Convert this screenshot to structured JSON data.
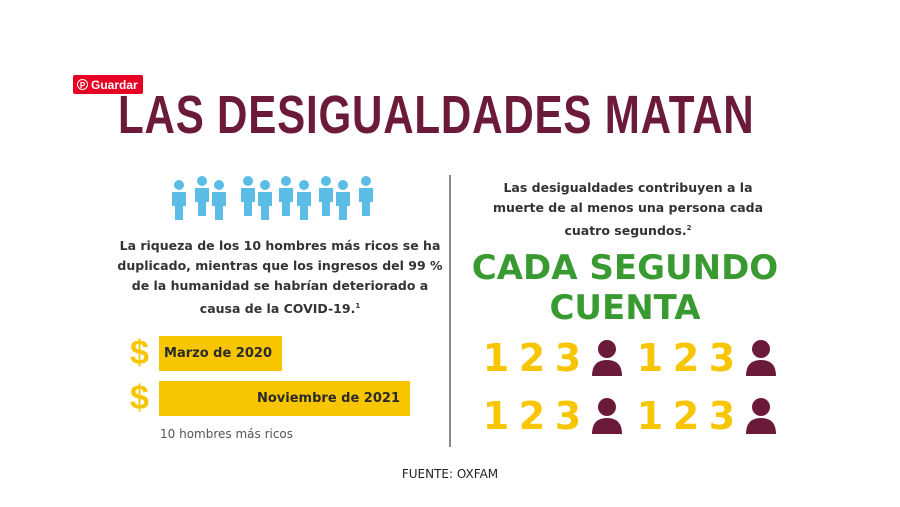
{
  "save_button": {
    "label": "Guardar",
    "icon": "pinterest-icon",
    "color": "#e60023"
  },
  "title": "LAS DESIGUALDADES MATAN",
  "left": {
    "people_count": 10,
    "text": "La riqueza de los 10 hombres más ricos se ha duplicado, mientras que los ingresos del 99 % de la humanidad se habrían deteriorado a causa de la COVID-19.",
    "footnote": "1",
    "bars": [
      {
        "label": "Marzo de 2020",
        "icon": "dollar-icon"
      },
      {
        "label": "Noviembre de 2021",
        "icon": "dollar-icon"
      }
    ],
    "legend": "10 hombres más ricos"
  },
  "right": {
    "text": "Las desigualdades contribuyen a la muerte de al menos una persona cada cuatro segundos.",
    "footnote": "2",
    "headline_1": "CADA SEGUNDO",
    "headline_2": "CUENTA",
    "counts": [
      "1",
      "2",
      "3"
    ]
  },
  "source": "FUENTE: OXFAM",
  "colors": {
    "title": "#6b1a3a",
    "people": "#5bbde6",
    "yellow": "#f7c600",
    "green": "#3a9a32",
    "person": "#6b1a3a"
  }
}
